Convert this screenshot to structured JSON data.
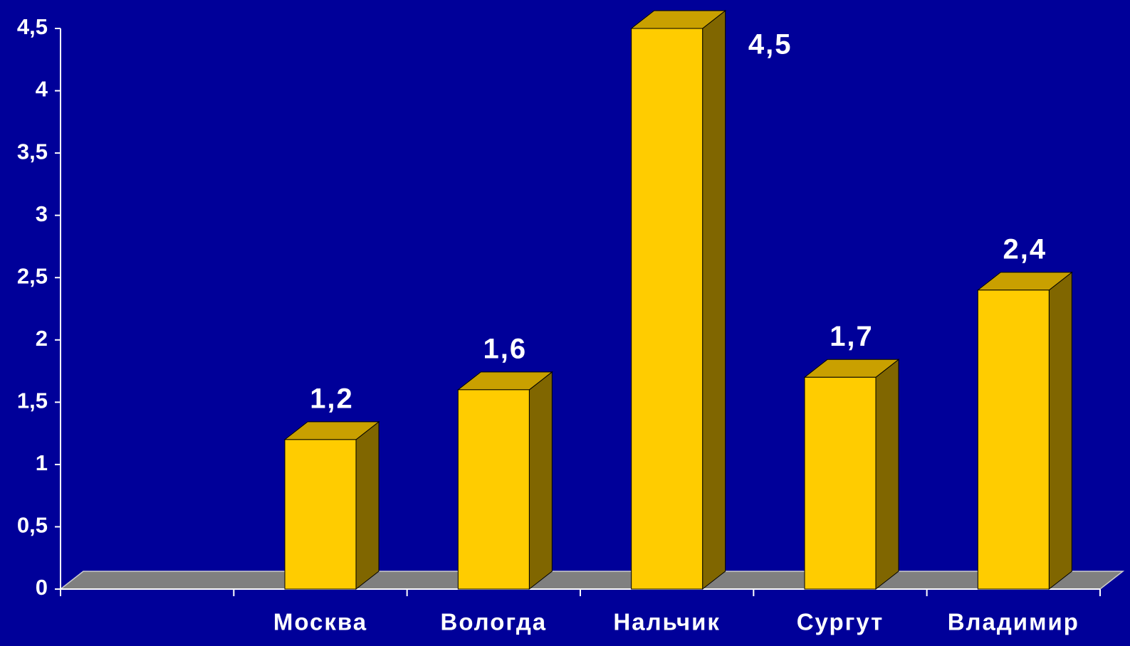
{
  "chart_data": {
    "type": "bar3d",
    "categories": [
      null,
      "Москва",
      "Вологда",
      "Нальчик",
      "Сургут",
      "Владимир"
    ],
    "values": [
      null,
      1.2,
      1.6,
      4.5,
      1.7,
      2.4
    ],
    "value_labels": [
      null,
      "1,2",
      "1,6",
      "4,5",
      "1,7",
      "2,4"
    ],
    "color": "#ffcc00",
    "ylim": [
      0,
      4.5
    ],
    "yticks": [
      0,
      {
        "value": 0.5,
        "label": "0,5"
      },
      1,
      {
        "value": 1.5,
        "label": "1,5"
      },
      2,
      {
        "value": 2.5,
        "label": "2,5"
      },
      3,
      {
        "value": 3.5,
        "label": "3,5"
      },
      4,
      {
        "value": 4.5,
        "label": "4,5"
      }
    ]
  }
}
